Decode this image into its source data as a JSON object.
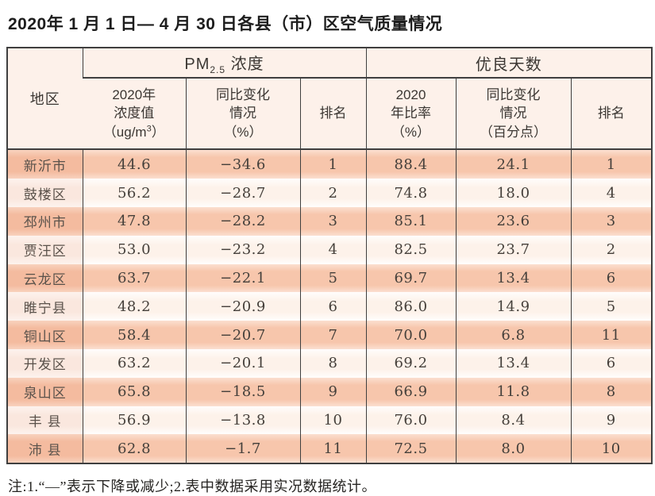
{
  "title": "2020年 1 月 1 日— 4 月 30 日各县（市）区空气质量情况",
  "colors": {
    "row_odd": "#f7c6ac",
    "row_odd_region": "#f4bb9f",
    "row_even": "#fdf2ea",
    "row_even_region": "#fae7de",
    "header_bg": "#fdf1ea",
    "border_dark": "#3f3f3f",
    "text_number": "#45403b"
  },
  "table": {
    "region_header": "地区",
    "groups": {
      "pm": {
        "prefix": "PM",
        "subscript": "2.5",
        "suffix": " 浓度"
      },
      "good": "优良天数"
    },
    "sub_headers": {
      "pm_value": {
        "line1": "2020年",
        "line2": "浓度值",
        "unit_pre": "（ug/m",
        "unit_sup": "3",
        "unit_post": "）"
      },
      "pm_change": {
        "line1": "同比变化",
        "line2": "情况",
        "line3": "（%）"
      },
      "pm_rank": {
        "line1": "排名"
      },
      "good_rate": {
        "line1": "2020",
        "line2": "年比率",
        "line3": "（%）"
      },
      "good_change": {
        "line1": "同比变化",
        "line2": "情况",
        "line3": "（百分点）"
      },
      "good_rank": {
        "line1": "排名"
      }
    },
    "rows": [
      {
        "region": "新沂市",
        "pm_value": "44.6",
        "pm_change": "−34.6",
        "pm_rank": "1",
        "good_rate": "88.4",
        "good_change": "24.1",
        "good_rank": "1"
      },
      {
        "region": "鼓楼区",
        "pm_value": "56.2",
        "pm_change": "−28.7",
        "pm_rank": "2",
        "good_rate": "74.8",
        "good_change": "18.0",
        "good_rank": "4"
      },
      {
        "region": "邳州市",
        "pm_value": "47.8",
        "pm_change": "−28.2",
        "pm_rank": "3",
        "good_rate": "85.1",
        "good_change": "23.6",
        "good_rank": "3"
      },
      {
        "region": "贾汪区",
        "pm_value": "53.0",
        "pm_change": "−23.2",
        "pm_rank": "4",
        "good_rate": "82.5",
        "good_change": "23.7",
        "good_rank": "2"
      },
      {
        "region": "云龙区",
        "pm_value": "63.7",
        "pm_change": "−22.1",
        "pm_rank": "5",
        "good_rate": "69.7",
        "good_change": "13.4",
        "good_rank": "6"
      },
      {
        "region": "睢宁县",
        "pm_value": "48.2",
        "pm_change": "−20.9",
        "pm_rank": "6",
        "good_rate": "86.0",
        "good_change": "14.9",
        "good_rank": "5"
      },
      {
        "region": "铜山区",
        "pm_value": "58.4",
        "pm_change": "−20.7",
        "pm_rank": "7",
        "good_rate": "70.0",
        "good_change": "6.8",
        "good_rank": "11"
      },
      {
        "region": "开发区",
        "pm_value": "63.2",
        "pm_change": "−20.1",
        "pm_rank": "8",
        "good_rate": "69.2",
        "good_change": "13.4",
        "good_rank": "6"
      },
      {
        "region": "泉山区",
        "pm_value": "65.8",
        "pm_change": "−18.5",
        "pm_rank": "9",
        "good_rate": "66.9",
        "good_change": "11.8",
        "good_rank": "8"
      },
      {
        "region": "丰 县",
        "pm_value": "56.9",
        "pm_change": "−13.8",
        "pm_rank": "10",
        "good_rate": "76.0",
        "good_change": "8.4",
        "good_rank": "9"
      },
      {
        "region": "沛 县",
        "pm_value": "62.8",
        "pm_change": "−1.7",
        "pm_rank": "11",
        "good_rate": "72.5",
        "good_change": "8.0",
        "good_rank": "10"
      }
    ]
  },
  "note": "注:1.“—”表示下降或减少;2.表中数据采用实况数据统计。"
}
